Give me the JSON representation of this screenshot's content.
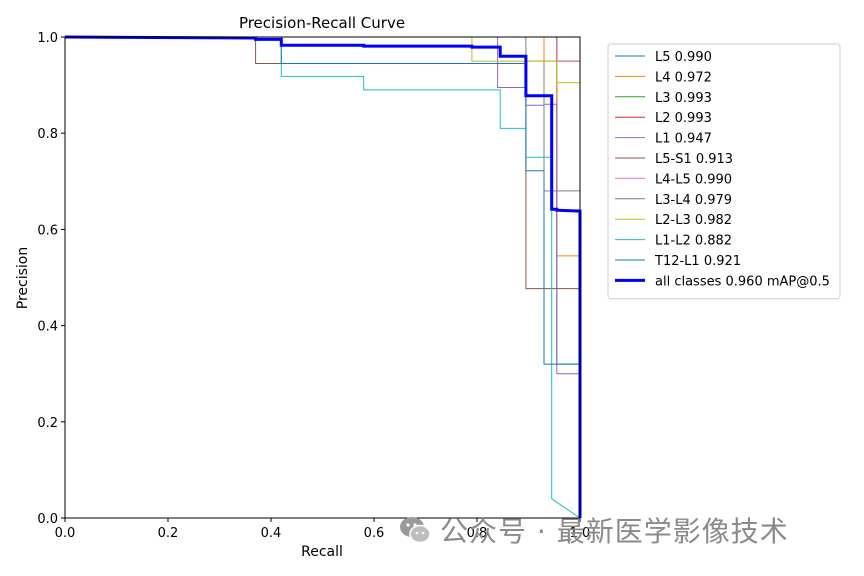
{
  "chart_data": {
    "type": "line",
    "title": "Precision-Recall Curve",
    "xlabel": "Recall",
    "ylabel": "Precision",
    "xlim": [
      0,
      1
    ],
    "ylim": [
      0,
      1
    ],
    "xticks": [
      "0.0",
      "0.2",
      "0.4",
      "0.6",
      "0.8",
      "1.0"
    ],
    "yticks": [
      "0.0",
      "0.2",
      "0.4",
      "0.6",
      "0.8",
      "1.0"
    ],
    "legend_position": "outside-right",
    "series": [
      {
        "name": "L5 0.990",
        "color": "#1f77b4",
        "width": 1,
        "points": [
          [
            0,
            1
          ],
          [
            0.955,
            1
          ],
          [
            0.955,
            0.32
          ],
          [
            1.0,
            0.32
          ],
          [
            1.0,
            0
          ]
        ]
      },
      {
        "name": "L4 0.972",
        "color": "#ff7f0e",
        "width": 1,
        "points": [
          [
            0,
            1
          ],
          [
            0.93,
            1
          ],
          [
            0.93,
            0.95
          ],
          [
            0.955,
            0.95
          ],
          [
            0.955,
            0.545
          ],
          [
            1.0,
            0.545
          ],
          [
            1.0,
            0
          ]
        ]
      },
      {
        "name": "L3 0.993",
        "color": "#2ca02c",
        "width": 1,
        "points": [
          [
            0,
            1
          ],
          [
            0.955,
            1
          ],
          [
            0.955,
            0.95
          ],
          [
            1.0,
            0.95
          ],
          [
            1.0,
            0
          ]
        ]
      },
      {
        "name": "L2 0.993",
        "color": "#d62728",
        "width": 1,
        "points": [
          [
            0,
            1
          ],
          [
            0.955,
            1
          ],
          [
            0.955,
            0.95
          ],
          [
            1.0,
            0.95
          ],
          [
            1.0,
            0
          ]
        ]
      },
      {
        "name": "L1 0.947",
        "color": "#9467bd",
        "width": 1,
        "points": [
          [
            0,
            1
          ],
          [
            0.84,
            1
          ],
          [
            0.84,
            0.895
          ],
          [
            0.895,
            0.895
          ],
          [
            0.895,
            0.858
          ],
          [
            0.93,
            0.858
          ],
          [
            0.93,
            0.86
          ],
          [
            0.955,
            0.86
          ],
          [
            0.955,
            0.3
          ],
          [
            1.0,
            0.3
          ],
          [
            1.0,
            0
          ]
        ]
      },
      {
        "name": "L5-S1 0.913",
        "color": "#8c564b",
        "width": 1,
        "points": [
          [
            0,
            1
          ],
          [
            0.37,
            1
          ],
          [
            0.37,
            0.945
          ],
          [
            0.895,
            0.945
          ],
          [
            0.895,
            0.477
          ],
          [
            1.0,
            0.477
          ],
          [
            1.0,
            0
          ]
        ]
      },
      {
        "name": "L4-L5 0.990",
        "color": "#e377c2",
        "width": 1,
        "points": [
          [
            0,
            1
          ],
          [
            0.955,
            1
          ],
          [
            0.955,
            0.95
          ],
          [
            1.0,
            0.95
          ],
          [
            1.0,
            0
          ]
        ]
      },
      {
        "name": "L3-L4 0.979",
        "color": "#7f7f7f",
        "width": 1,
        "points": [
          [
            0,
            1
          ],
          [
            0.895,
            1
          ],
          [
            0.895,
            0.95
          ],
          [
            0.93,
            0.95
          ],
          [
            0.93,
            0.68
          ],
          [
            1.0,
            0.68
          ],
          [
            1.0,
            0
          ]
        ]
      },
      {
        "name": "L2-L3 0.982",
        "color": "#bcbd22",
        "width": 1,
        "points": [
          [
            0,
            1
          ],
          [
            0.79,
            1
          ],
          [
            0.79,
            0.95
          ],
          [
            0.955,
            0.95
          ],
          [
            0.955,
            0.905
          ],
          [
            1.0,
            0.905
          ],
          [
            1.0,
            0
          ]
        ]
      },
      {
        "name": "L1-L2 0.882",
        "color": "#17becf",
        "width": 1,
        "points": [
          [
            0,
            1
          ],
          [
            0.42,
            1
          ],
          [
            0.42,
            0.918
          ],
          [
            0.58,
            0.918
          ],
          [
            0.58,
            0.89
          ],
          [
            0.845,
            0.89
          ],
          [
            0.845,
            0.81
          ],
          [
            0.895,
            0.81
          ],
          [
            0.895,
            0.75
          ],
          [
            0.945,
            0.75
          ],
          [
            0.945,
            0.04
          ],
          [
            1.0,
            0.0
          ]
        ]
      },
      {
        "name": "T12-L1 0.921",
        "color": "#1f77b4",
        "width": 1,
        "points": [
          [
            0,
            1
          ],
          [
            0.42,
            1
          ],
          [
            0.42,
            0.945
          ],
          [
            0.895,
            0.945
          ],
          [
            0.895,
            0.722
          ],
          [
            0.93,
            0.722
          ],
          [
            0.93,
            0.32
          ],
          [
            1.0,
            0.32
          ],
          [
            1.0,
            0
          ]
        ]
      },
      {
        "name": "all classes 0.960 mAP@0.5",
        "color": "#0000ff",
        "width": 3,
        "points": [
          [
            0,
            1
          ],
          [
            0.37,
            0.998
          ],
          [
            0.37,
            0.995
          ],
          [
            0.42,
            0.995
          ],
          [
            0.42,
            0.983
          ],
          [
            0.58,
            0.983
          ],
          [
            0.58,
            0.981
          ],
          [
            0.79,
            0.981
          ],
          [
            0.79,
            0.979
          ],
          [
            0.845,
            0.979
          ],
          [
            0.845,
            0.96
          ],
          [
            0.895,
            0.96
          ],
          [
            0.895,
            0.878
          ],
          [
            0.945,
            0.878
          ],
          [
            0.945,
            0.642
          ],
          [
            0.955,
            0.642
          ],
          [
            0.955,
            0.64
          ],
          [
            1.0,
            0.638
          ],
          [
            1.0,
            0.0
          ]
        ]
      }
    ]
  },
  "watermark": {
    "text": "公众号 · 最新医学影像技术"
  }
}
